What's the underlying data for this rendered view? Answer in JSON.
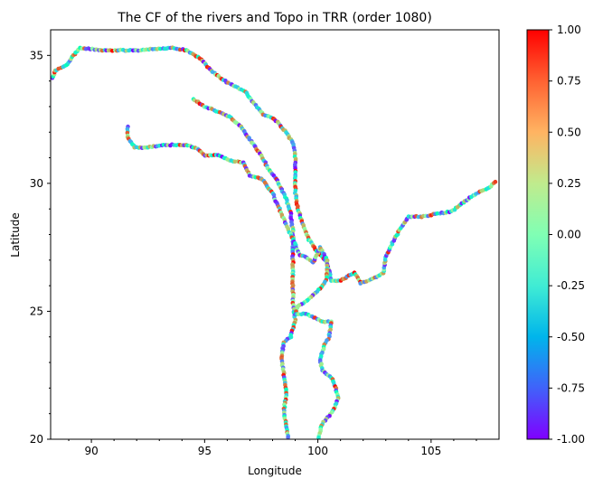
{
  "chart_data": {
    "type": "scatter",
    "title": "The CF of the rivers and Topo in TRR (order 1080)",
    "xlabel": "Longitude",
    "ylabel": "Latitude",
    "xlim": [
      88.2,
      108.0
    ],
    "ylim": [
      20.0,
      36.0
    ],
    "xticks": [
      90,
      95,
      100,
      105
    ],
    "yticks": [
      20,
      25,
      30,
      35
    ],
    "grid": false,
    "colormap": "rainbow",
    "colorbar": {
      "range": [
        -1.0,
        1.0
      ],
      "ticks": [
        "1.00",
        "0.75",
        "0.50",
        "0.25",
        "0.00",
        "-0.25",
        "-0.50",
        "-0.75",
        "-1.00"
      ]
    },
    "rivers": [
      {
        "points": [
          [
            88.3,
            34.1
          ],
          [
            88.4,
            34.4
          ],
          [
            88.9,
            34.6
          ],
          [
            89.2,
            35.0
          ],
          [
            89.5,
            35.3
          ],
          [
            90.5,
            35.2
          ],
          [
            92.0,
            35.2
          ],
          [
            93.5,
            35.3
          ],
          [
            94.2,
            35.2
          ],
          [
            94.8,
            34.9
          ],
          [
            95.3,
            34.4
          ],
          [
            95.9,
            34.0
          ],
          [
            96.3,
            33.8
          ],
          [
            96.8,
            33.6
          ],
          [
            97.2,
            33.1
          ],
          [
            97.6,
            32.7
          ],
          [
            98.1,
            32.5
          ],
          [
            98.5,
            32.1
          ],
          [
            98.9,
            31.6
          ],
          [
            99.0,
            31.2
          ],
          [
            99.0,
            30.5
          ],
          [
            99.0,
            29.7
          ],
          [
            99.1,
            29.1
          ],
          [
            99.3,
            28.5
          ],
          [
            99.6,
            27.8
          ],
          [
            100.0,
            27.3
          ],
          [
            100.4,
            26.9
          ],
          [
            100.6,
            26.2
          ],
          [
            101.0,
            26.2
          ],
          [
            101.6,
            26.5
          ],
          [
            101.9,
            26.1
          ],
          [
            102.5,
            26.3
          ],
          [
            102.9,
            26.5
          ],
          [
            103.0,
            27.1
          ],
          [
            103.3,
            27.7
          ],
          [
            103.7,
            28.3
          ],
          [
            104.0,
            28.7
          ],
          [
            104.6,
            28.7
          ],
          [
            105.2,
            28.8
          ],
          [
            105.9,
            28.9
          ],
          [
            106.5,
            29.3
          ],
          [
            107.0,
            29.6
          ],
          [
            107.5,
            29.8
          ],
          [
            107.9,
            30.1
          ]
        ]
      },
      {
        "points": [
          [
            94.5,
            33.3
          ],
          [
            95.0,
            33.0
          ],
          [
            95.6,
            32.8
          ],
          [
            96.1,
            32.6
          ],
          [
            96.6,
            32.2
          ],
          [
            97.1,
            31.6
          ],
          [
            97.5,
            31.1
          ],
          [
            97.8,
            30.6
          ],
          [
            98.2,
            30.1
          ],
          [
            98.6,
            29.4
          ],
          [
            98.8,
            28.8
          ],
          [
            98.9,
            28.1
          ],
          [
            98.9,
            27.3
          ],
          [
            98.9,
            26.4
          ],
          [
            98.9,
            25.4
          ],
          [
            99.0,
            24.6
          ],
          [
            98.8,
            24.0
          ],
          [
            98.5,
            23.8
          ],
          [
            98.4,
            23.2
          ],
          [
            98.5,
            22.5
          ],
          [
            98.6,
            21.8
          ],
          [
            98.5,
            21.1
          ],
          [
            98.6,
            20.5
          ],
          [
            98.7,
            20.0
          ]
        ]
      },
      {
        "points": [
          [
            91.6,
            32.2
          ],
          [
            91.6,
            31.8
          ],
          [
            91.9,
            31.4
          ],
          [
            92.5,
            31.4
          ],
          [
            93.1,
            31.5
          ],
          [
            94.1,
            31.5
          ],
          [
            94.6,
            31.4
          ],
          [
            95.0,
            31.1
          ],
          [
            95.6,
            31.1
          ],
          [
            96.1,
            30.9
          ],
          [
            96.7,
            30.8
          ],
          [
            97.0,
            30.3
          ],
          [
            97.5,
            30.2
          ],
          [
            98.0,
            29.6
          ],
          [
            98.3,
            29.0
          ],
          [
            98.6,
            28.4
          ],
          [
            98.9,
            27.8
          ],
          [
            99.2,
            27.2
          ],
          [
            99.5,
            27.1
          ],
          [
            99.8,
            26.9
          ],
          [
            100.1,
            27.5
          ],
          [
            100.4,
            27.0
          ],
          [
            100.4,
            26.3
          ],
          [
            100.1,
            25.9
          ],
          [
            99.5,
            25.4
          ],
          [
            99.1,
            25.2
          ],
          [
            99.0,
            24.9
          ],
          [
            99.5,
            24.9
          ],
          [
            100.2,
            24.6
          ],
          [
            100.6,
            24.6
          ],
          [
            100.5,
            24.0
          ],
          [
            100.3,
            23.7
          ],
          [
            100.1,
            23.1
          ],
          [
            100.2,
            22.7
          ],
          [
            100.6,
            22.4
          ],
          [
            100.8,
            22.0
          ],
          [
            100.9,
            21.6
          ],
          [
            100.7,
            21.2
          ],
          [
            100.5,
            20.9
          ],
          [
            100.2,
            20.6
          ],
          [
            100.1,
            20.3
          ],
          [
            100.0,
            20.0
          ]
        ]
      }
    ]
  }
}
